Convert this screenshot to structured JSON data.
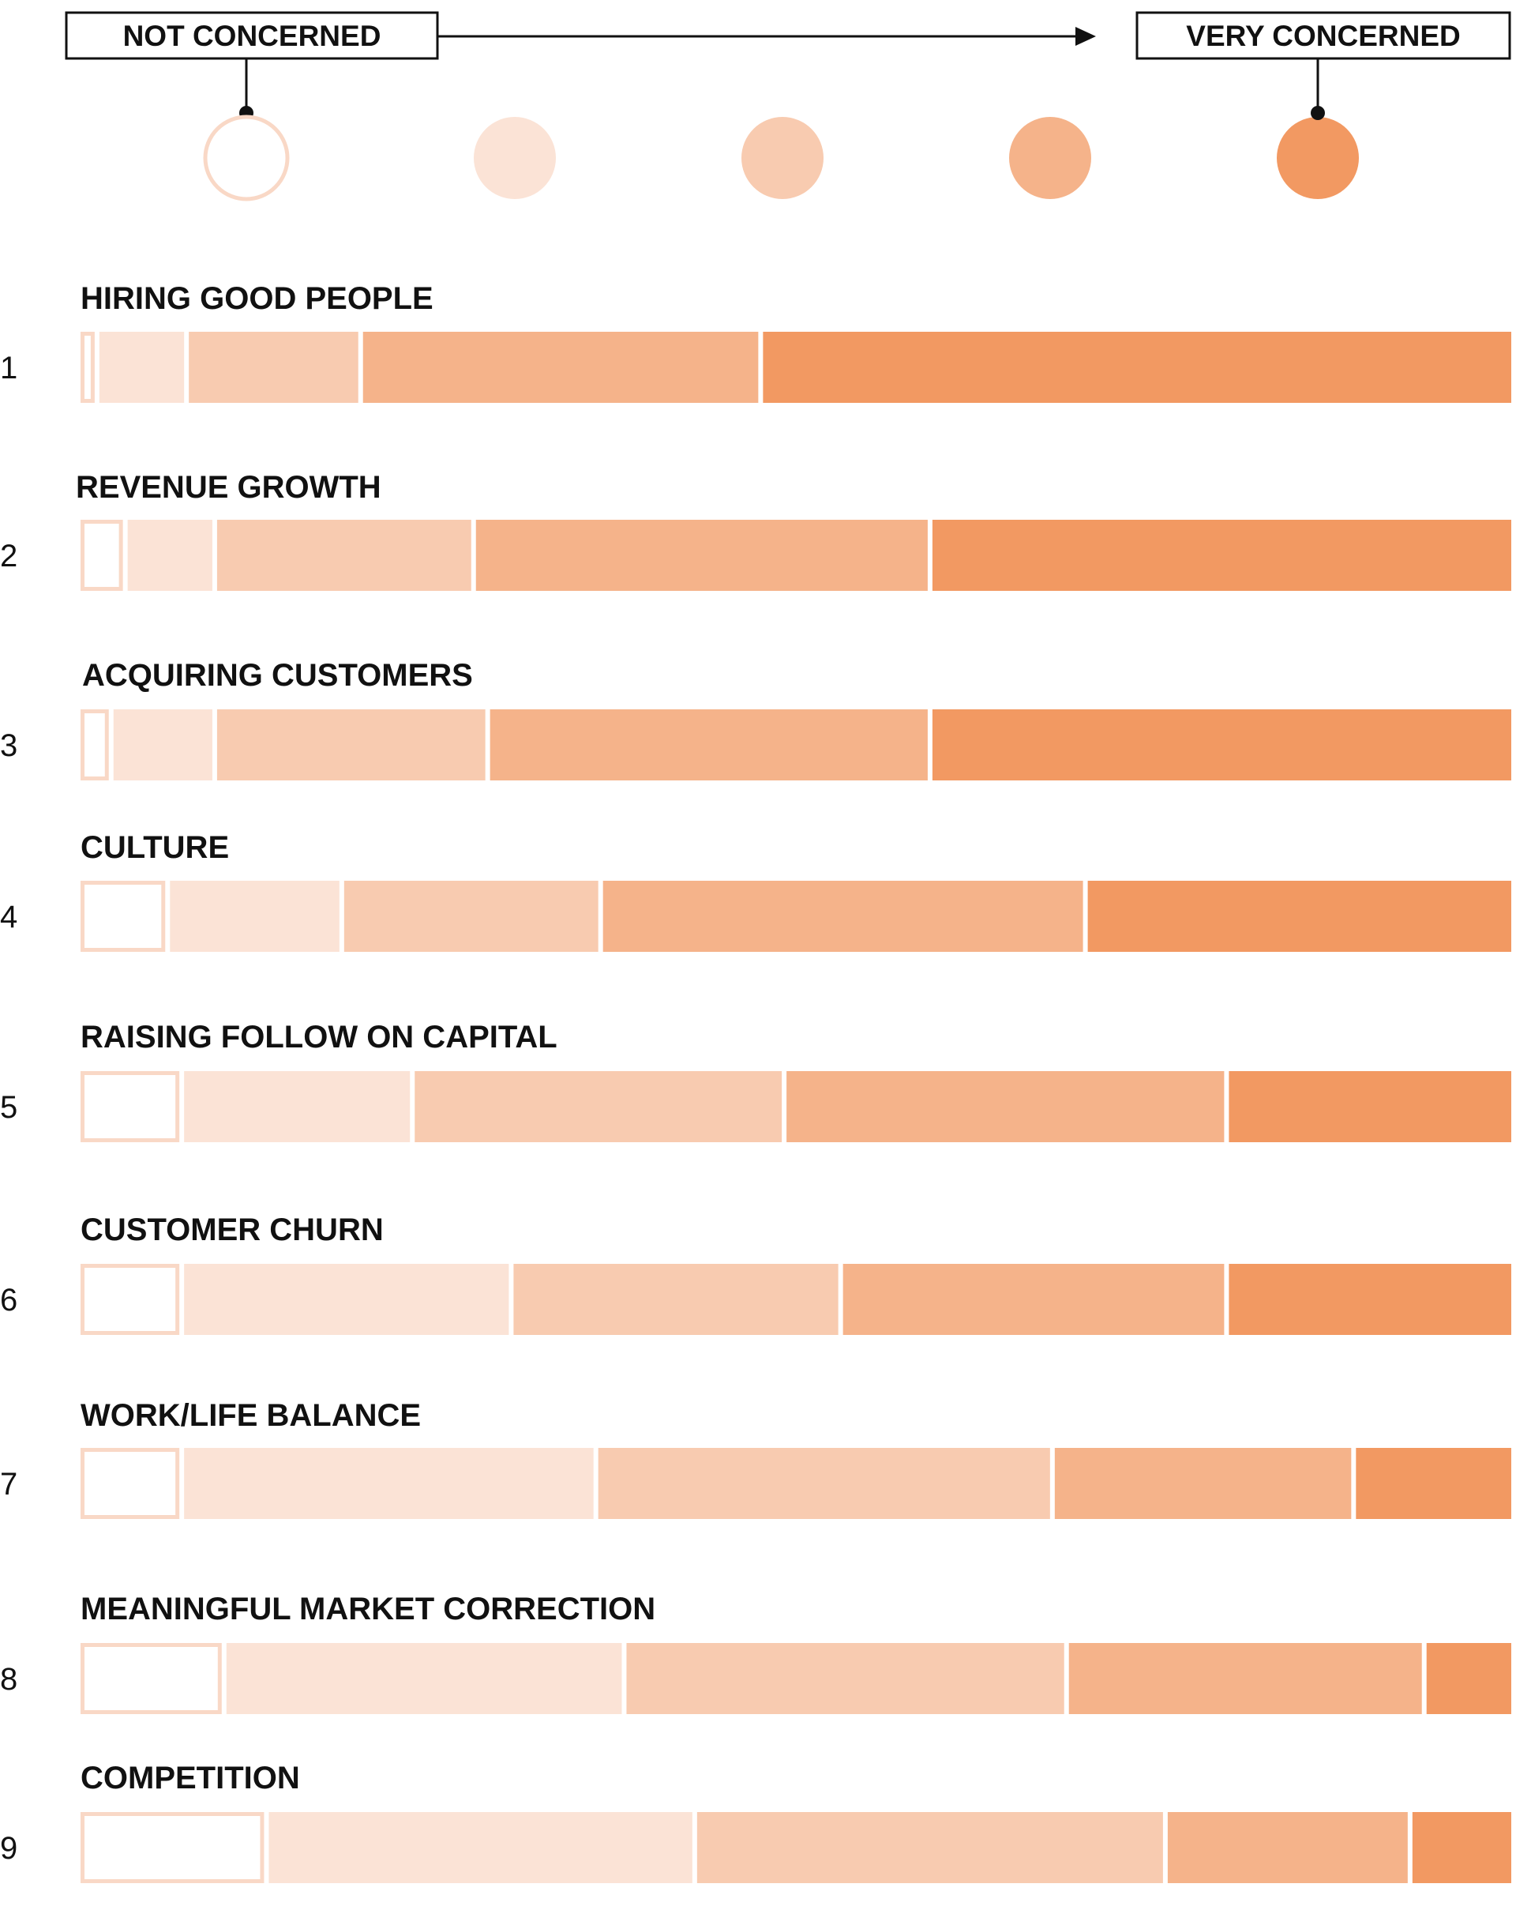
{
  "legend": {
    "low_label": "NOT CONCERNED",
    "high_label": "VERY CONCERNED",
    "scale_colors": [
      "#ffffff",
      "#fbe3d6",
      "#f8cbb0",
      "#f5b38a",
      "#f29962"
    ],
    "outline_color": "#f9d8c6"
  },
  "chart_data": {
    "type": "bar",
    "stacked": true,
    "normalized": true,
    "orientation": "horizontal",
    "levels": 5,
    "level_colors": [
      "#ffffff",
      "#fbe3d6",
      "#f8cbb0",
      "#f5b38a",
      "#f29962"
    ],
    "categories": [
      "HIRING GOOD PEOPLE",
      "REVENUE GROWTH",
      "ACQUIRING CUSTOMERS",
      "CULTURE",
      "RAISING FOLLOW ON CAPITAL",
      "CUSTOMER CHURN",
      "WORK/LIFE BALANCE",
      "MEANINGFUL MARKET CORRECTION",
      "COMPETITION"
    ],
    "ranks": [
      "1",
      "2",
      "3",
      "4",
      "5",
      "6",
      "7",
      "8",
      "9"
    ],
    "values": [
      [
        1,
        6,
        12,
        28,
        53
      ],
      [
        3,
        6,
        18,
        32,
        41
      ],
      [
        2,
        7,
        19,
        31,
        41
      ],
      [
        6,
        12,
        18,
        34,
        30
      ],
      [
        7,
        16,
        26,
        31,
        20
      ],
      [
        7,
        23,
        23,
        27,
        20
      ],
      [
        7,
        29,
        32,
        21,
        11
      ],
      [
        10,
        28,
        31,
        25,
        6
      ],
      [
        13,
        30,
        33,
        17,
        7
      ]
    ]
  }
}
